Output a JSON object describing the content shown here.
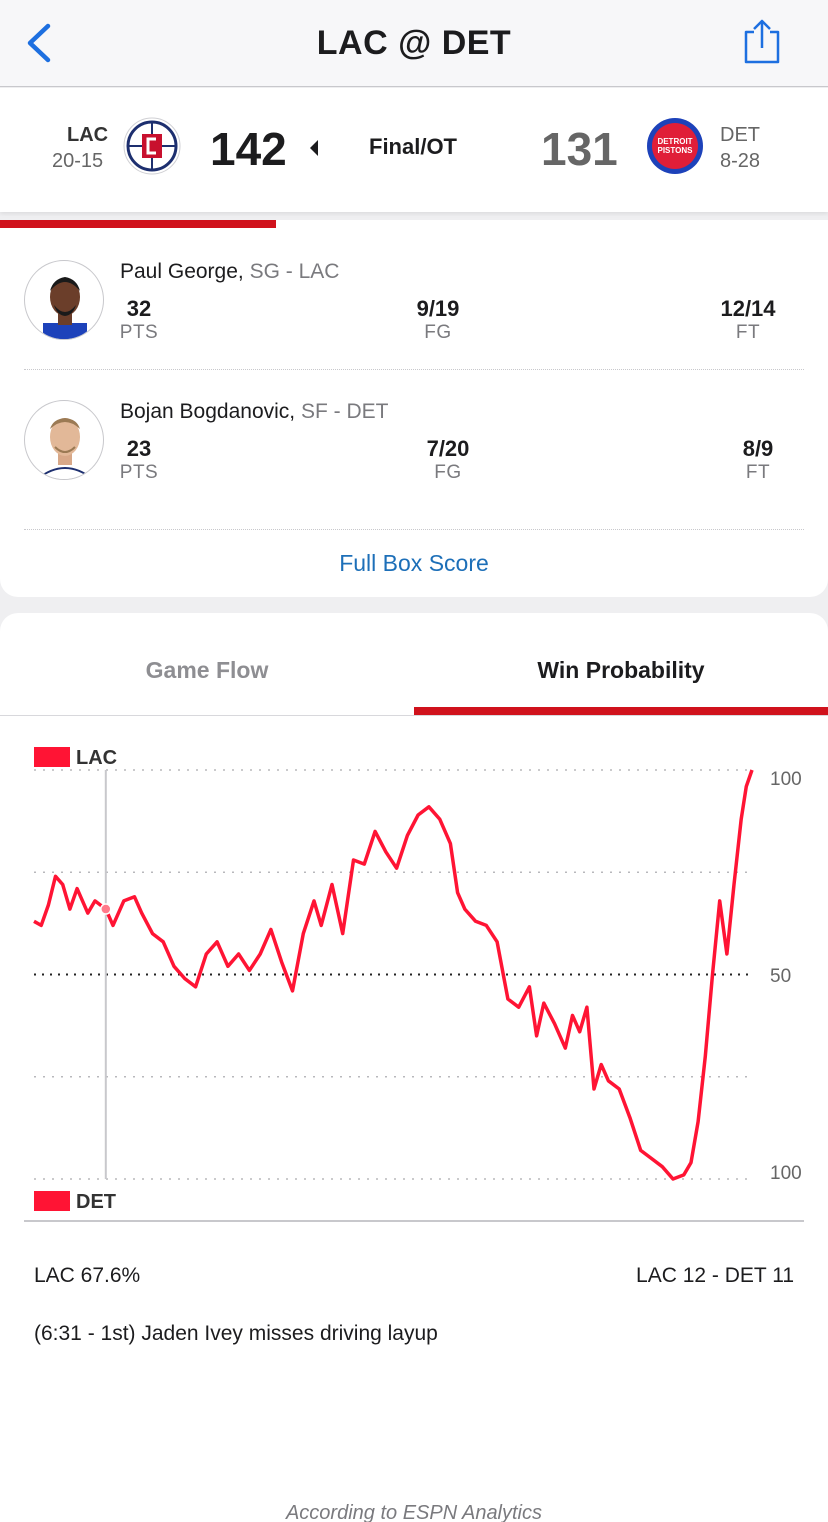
{
  "nav": {
    "title": "LAC @ DET",
    "back_icon": "chevron-left-icon",
    "share_icon": "share-icon"
  },
  "scoreboard": {
    "away": {
      "abbr": "LAC",
      "record": "20-15",
      "score": "142",
      "logo": "clippers-logo",
      "color": "#c8102e"
    },
    "home": {
      "abbr": "DET",
      "record": "8-28",
      "score": "131",
      "logo": "pistons-logo",
      "color": "#1d42ba",
      "logo_text_1": "DETROIT",
      "logo_text_2": "PISTONS"
    },
    "status": "Final/OT",
    "winner_indicator": "caret-left-icon"
  },
  "leaders": [
    {
      "name": "Paul George,",
      "position": "SG - LAC",
      "stats": [
        {
          "value": "32",
          "label": "PTS"
        },
        {
          "value": "9/19",
          "label": "FG"
        },
        {
          "value": "12/14",
          "label": "FT"
        }
      ]
    },
    {
      "name": "Bojan Bogdanovic,",
      "position": "SF - DET",
      "stats": [
        {
          "value": "23",
          "label": "PTS"
        },
        {
          "value": "7/20",
          "label": "FG"
        },
        {
          "value": "8/9",
          "label": "FT"
        }
      ]
    }
  ],
  "box_score_link": "Full Box Score",
  "tabs": [
    {
      "label": "Game Flow",
      "active": false
    },
    {
      "label": "Win Probability",
      "active": true
    }
  ],
  "chart_data": {
    "type": "line",
    "title": "",
    "xlabel": "",
    "ylabel": "",
    "legend": {
      "top": "LAC",
      "bottom": "DET"
    },
    "y_ticks": [
      "100",
      "50",
      "100"
    ],
    "ylim": [
      0,
      100
    ],
    "x_unit": "fraction of game elapsed",
    "series": [
      {
        "color": "#ff1434",
        "points": [
          [
            0.0,
            63
          ],
          [
            0.01,
            62
          ],
          [
            0.02,
            67
          ],
          [
            0.03,
            74
          ],
          [
            0.04,
            72
          ],
          [
            0.05,
            66
          ],
          [
            0.06,
            71
          ],
          [
            0.075,
            65
          ],
          [
            0.085,
            68
          ],
          [
            0.1,
            66
          ],
          [
            0.11,
            62
          ],
          [
            0.125,
            68
          ],
          [
            0.14,
            69
          ],
          [
            0.15,
            65
          ],
          [
            0.165,
            60
          ],
          [
            0.18,
            58
          ],
          [
            0.195,
            52
          ],
          [
            0.21,
            49
          ],
          [
            0.225,
            47
          ],
          [
            0.24,
            55
          ],
          [
            0.255,
            58
          ],
          [
            0.27,
            52
          ],
          [
            0.285,
            55
          ],
          [
            0.3,
            51
          ],
          [
            0.315,
            55
          ],
          [
            0.33,
            61
          ],
          [
            0.345,
            53
          ],
          [
            0.36,
            46
          ],
          [
            0.375,
            60
          ],
          [
            0.39,
            68
          ],
          [
            0.4,
            62
          ],
          [
            0.415,
            72
          ],
          [
            0.43,
            60
          ],
          [
            0.445,
            78
          ],
          [
            0.46,
            77
          ],
          [
            0.475,
            85
          ],
          [
            0.49,
            80
          ],
          [
            0.505,
            76
          ],
          [
            0.52,
            84
          ],
          [
            0.535,
            89
          ],
          [
            0.55,
            91
          ],
          [
            0.565,
            88
          ],
          [
            0.58,
            82
          ],
          [
            0.59,
            70
          ],
          [
            0.6,
            66
          ],
          [
            0.615,
            63
          ],
          [
            0.63,
            62
          ],
          [
            0.645,
            58
          ],
          [
            0.66,
            44
          ],
          [
            0.675,
            42
          ],
          [
            0.69,
            47
          ],
          [
            0.7,
            35
          ],
          [
            0.71,
            43
          ],
          [
            0.725,
            38
          ],
          [
            0.74,
            32
          ],
          [
            0.75,
            40
          ],
          [
            0.76,
            36
          ],
          [
            0.77,
            42
          ],
          [
            0.78,
            22
          ],
          [
            0.79,
            28
          ],
          [
            0.8,
            24
          ],
          [
            0.815,
            22
          ],
          [
            0.83,
            15
          ],
          [
            0.845,
            7
          ],
          [
            0.86,
            5
          ],
          [
            0.875,
            3
          ],
          [
            0.89,
            0
          ],
          [
            0.905,
            1
          ],
          [
            0.915,
            4
          ],
          [
            0.925,
            14
          ],
          [
            0.935,
            30
          ],
          [
            0.945,
            50
          ],
          [
            0.955,
            68
          ],
          [
            0.965,
            55
          ],
          [
            0.975,
            72
          ],
          [
            0.985,
            88
          ],
          [
            0.992,
            96
          ],
          [
            1.0,
            100
          ]
        ]
      }
    ],
    "marker_x": 0.1,
    "grid": true
  },
  "wp_readout": {
    "probability": "LAC 67.6%",
    "score": "LAC 12 - DET 11",
    "play": "(6:31 - 1st) Jaden Ivey misses driving layup"
  },
  "source": "According to ESPN Analytics"
}
